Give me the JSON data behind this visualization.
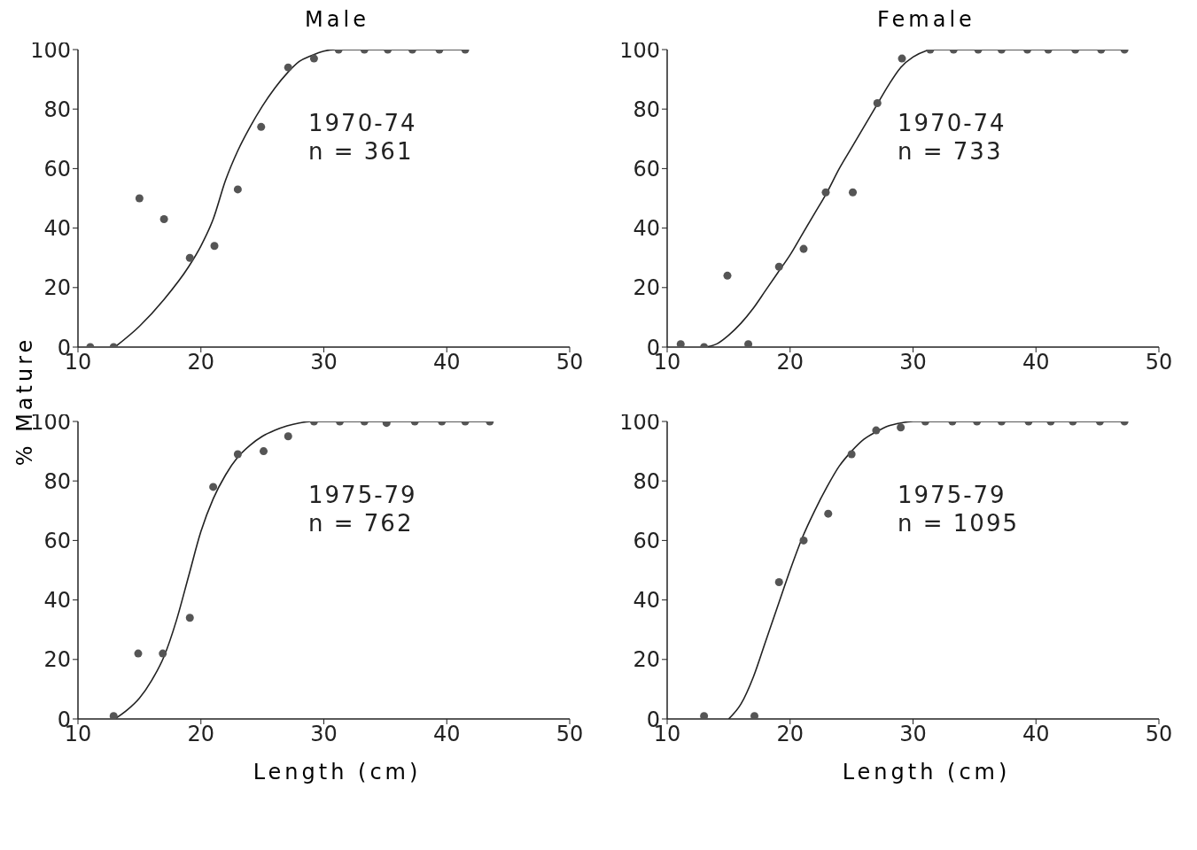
{
  "chart_data": [
    {
      "type": "scatter",
      "title": "Male",
      "ylabel": "% Mature",
      "annotations": [
        "1970-74",
        "n = 361"
      ],
      "xlim": [
        10,
        50
      ],
      "xticks": [
        10,
        20,
        30,
        40,
        50
      ],
      "ylim": [
        0,
        100
      ],
      "yticks": [
        0,
        20,
        40,
        60,
        80,
        100
      ],
      "series": [
        {
          "type": "scatter",
          "marker": "circle",
          "color": "#555555",
          "x": [
            11,
            12.9,
            15,
            17,
            19.1,
            21.1,
            23,
            24.9,
            27.1,
            29.2,
            31.2,
            33.3,
            35.2,
            37.2,
            39.4,
            41.5
          ],
          "values": [
            0,
            0,
            50,
            43,
            30,
            34,
            53,
            74,
            94,
            97,
            100,
            100,
            100,
            100,
            100,
            100
          ]
        },
        {
          "type": "line",
          "line_style": "solid",
          "color": "#222222",
          "x": [
            13,
            15,
            17,
            19,
            20,
            21,
            22,
            23,
            24,
            25,
            26,
            27,
            28,
            29,
            30,
            31,
            41.5
          ],
          "values": [
            0,
            7,
            16,
            27,
            34,
            43,
            56,
            66,
            74,
            81,
            87,
            92,
            96,
            98,
            99.5,
            100,
            100
          ]
        }
      ]
    },
    {
      "type": "scatter",
      "title": "Female",
      "annotations": [
        "1970-74",
        "n = 733"
      ],
      "xlim": [
        10,
        50
      ],
      "xticks": [
        10,
        20,
        30,
        40,
        50
      ],
      "ylim": [
        0,
        100
      ],
      "yticks": [
        0,
        20,
        40,
        60,
        80,
        100
      ],
      "series": [
        {
          "type": "scatter",
          "marker": "circle",
          "color": "#555555",
          "x": [
            11.1,
            13,
            14.9,
            16.6,
            19.1,
            21.1,
            22.9,
            25.1,
            27.1,
            29.1,
            31.4,
            33.3,
            35.3,
            37.2,
            39.3,
            41,
            43.2,
            45.3,
            47.2
          ],
          "values": [
            1,
            0,
            24,
            1,
            27,
            33,
            52,
            52,
            82,
            97,
            100,
            100,
            100,
            100,
            100,
            100,
            100,
            100,
            100
          ]
        },
        {
          "type": "line",
          "line_style": "solid",
          "color": "#222222",
          "x": [
            13,
            14,
            15,
            16,
            17,
            18,
            19,
            20,
            21,
            22,
            23,
            24,
            25,
            26,
            27,
            28,
            29,
            30,
            31,
            31.5,
            47.2
          ],
          "values": [
            0,
            1,
            4,
            8,
            13,
            19,
            25,
            31,
            38,
            45,
            52,
            60,
            67,
            74,
            81,
            88,
            94,
            97.5,
            99.5,
            100,
            100
          ]
        }
      ]
    },
    {
      "type": "scatter",
      "xlabel": "Length (cm)",
      "annotations": [
        "1975-79",
        "n = 762"
      ],
      "xlim": [
        10,
        50
      ],
      "xticks": [
        10,
        20,
        30,
        40,
        50
      ],
      "ylim": [
        0,
        100
      ],
      "yticks": [
        0,
        20,
        40,
        60,
        80,
        100
      ],
      "series": [
        {
          "type": "scatter",
          "marker": "circle",
          "color": "#555555",
          "x": [
            12.9,
            14.9,
            16.9,
            19.1,
            21,
            23,
            25.1,
            27.1,
            29.2,
            31.3,
            33.3,
            35.1,
            37.4,
            39.6,
            41.5,
            43.5
          ],
          "values": [
            1,
            22,
            22,
            34,
            78,
            89,
            90,
            95,
            100,
            100,
            100,
            99.5,
            100,
            100,
            100,
            100
          ]
        },
        {
          "type": "line",
          "line_style": "solid",
          "color": "#222222",
          "x": [
            13,
            14,
            15,
            16,
            17,
            18,
            19,
            20,
            21,
            22,
            23,
            24,
            25,
            26,
            27,
            28,
            29,
            43.5
          ],
          "values": [
            0,
            3,
            7,
            13,
            21,
            33,
            48,
            63,
            74,
            82,
            88,
            92,
            95,
            97,
            98.5,
            99.5,
            100,
            100
          ]
        }
      ]
    },
    {
      "type": "scatter",
      "xlabel": "Length (cm)",
      "annotations": [
        "1975-79",
        "n = 1095"
      ],
      "xlim": [
        10,
        50
      ],
      "xticks": [
        10,
        20,
        30,
        40,
        50
      ],
      "ylim": [
        0,
        100
      ],
      "yticks": [
        0,
        20,
        40,
        60,
        80,
        100
      ],
      "series": [
        {
          "type": "scatter",
          "marker": "circle",
          "color": "#555555",
          "x": [
            13,
            17.1,
            19.1,
            21.1,
            23.1,
            25,
            27,
            29,
            31,
            33.2,
            35.2,
            37.2,
            39.4,
            41.2,
            43,
            45.2,
            47.2
          ],
          "values": [
            1,
            1,
            46,
            60,
            69,
            89,
            97,
            98,
            100,
            100,
            100,
            100,
            100,
            100,
            100,
            100,
            100
          ]
        },
        {
          "type": "line",
          "line_style": "solid",
          "color": "#222222",
          "x": [
            15,
            16,
            17,
            18,
            19,
            20,
            21,
            22,
            23,
            24,
            25,
            26,
            27,
            28,
            29,
            30,
            47.2
          ],
          "values": [
            0,
            5,
            14,
            26,
            38,
            50,
            61,
            70,
            78,
            85,
            90,
            94,
            96.5,
            98.5,
            99.5,
            100,
            100
          ]
        }
      ]
    }
  ]
}
